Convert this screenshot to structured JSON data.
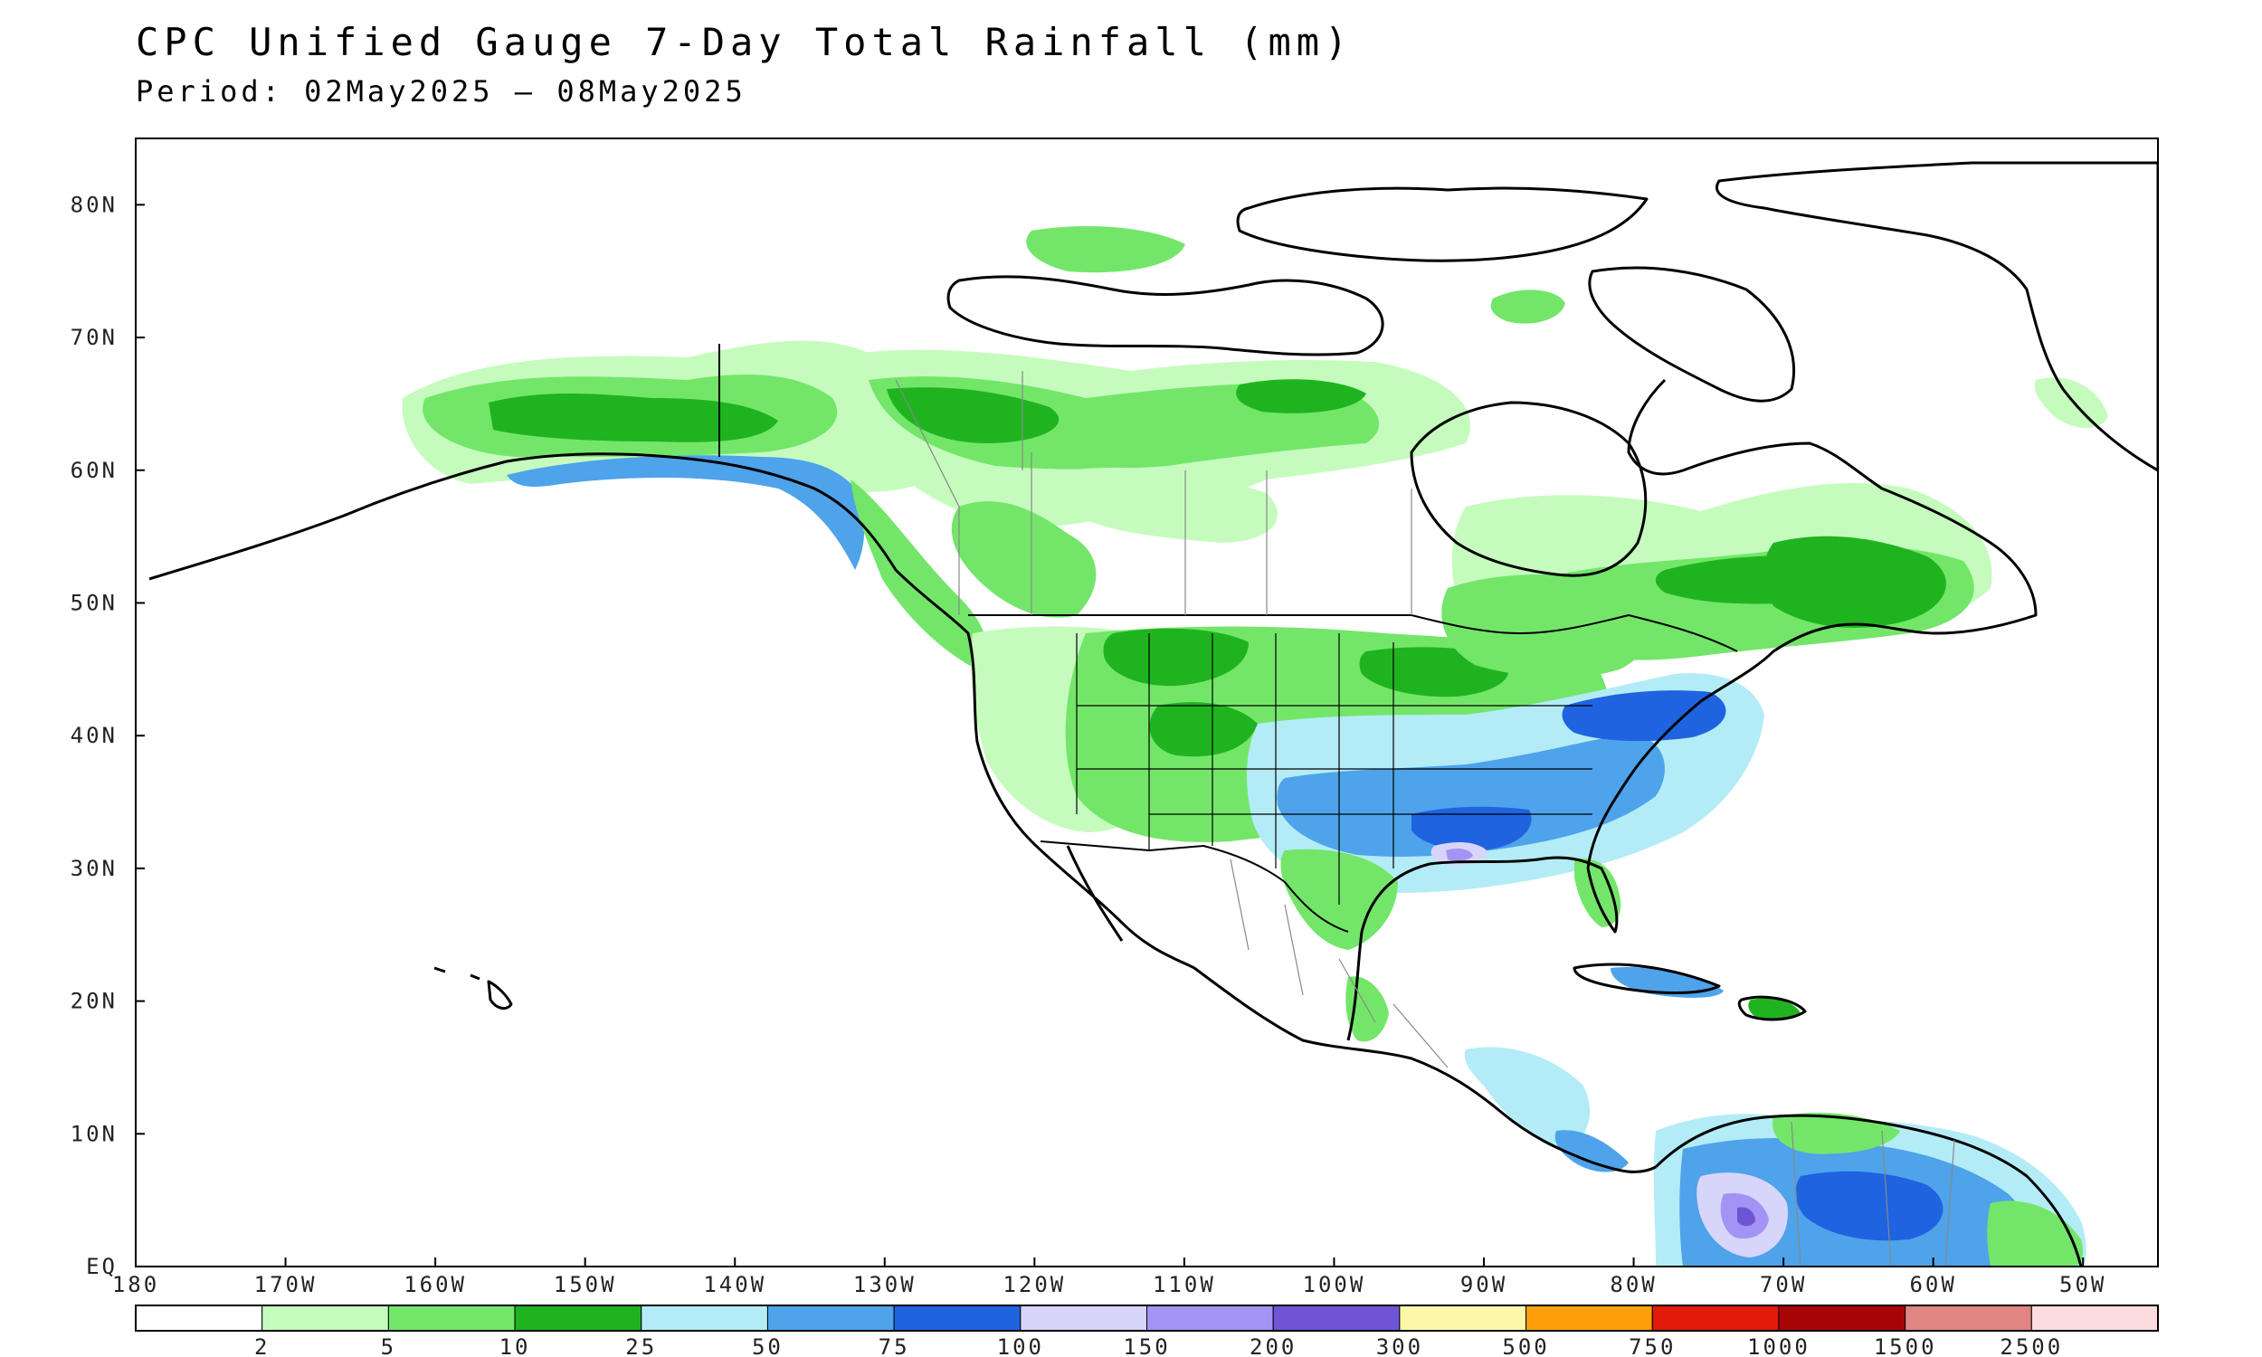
{
  "title": "CPC Unified Gauge 7-Day Total Rainfall (mm)",
  "subtitle": "Period: 02May2025 – 08May2025",
  "map": {
    "extent": {
      "lon_min": -180,
      "lon_max": -45,
      "lat_min": 0,
      "lat_max": 85
    },
    "lat_labels": [
      "80N",
      "70N",
      "60N",
      "50N",
      "40N",
      "30N",
      "20N",
      "10N",
      "EQ"
    ],
    "lon_labels": [
      "180",
      "170W",
      "160W",
      "150W",
      "140W",
      "130W",
      "120W",
      "110W",
      "100W",
      "90W",
      "80W",
      "70W",
      "60W",
      "50W"
    ]
  },
  "legend": {
    "colors": [
      "#ffffff",
      "#c6fbbe",
      "#73e66a",
      "#1fb41f",
      "#b3ecf7",
      "#4ea3ea",
      "#1f63e1",
      "#d8d5fb",
      "#a393f4",
      "#6f55d6",
      "#fdf8a8",
      "#fca00b",
      "#e11a0a",
      "#a80606",
      "#e08581",
      "#fcdcdf"
    ],
    "labels": [
      "2",
      "5",
      "10",
      "25",
      "50",
      "75",
      "100",
      "150",
      "200",
      "300",
      "500",
      "750",
      "1000",
      "1500",
      "2500"
    ]
  },
  "colors": {
    "light_green": "#c6fbbe",
    "green": "#73e66a",
    "dark_green": "#1fb41f",
    "light_blue": "#b3ecf7",
    "blue": "#4ea3ea",
    "dark_blue": "#1f63e1",
    "lavender": "#d8d5fb",
    "purple": "#a393f4"
  }
}
